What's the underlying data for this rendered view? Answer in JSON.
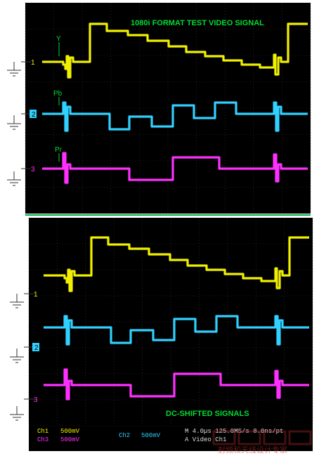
{
  "top_panel": {
    "title": "1080i FORMAT TEST VIDEO SIGNAL",
    "trace_labels": {
      "y": "Y",
      "pb": "Pb",
      "pr": "Pr"
    },
    "channel_markers": [
      "1",
      "2",
      "3"
    ]
  },
  "bottom_panel": {
    "title": "DC-SHIFTED SIGNALS",
    "channel_markers": [
      "1",
      "2",
      "3"
    ]
  },
  "status_bar": {
    "ch1": "Ch1",
    "ch1_scale": "500mV",
    "ch3": "Ch3",
    "ch3_scale": "500mV",
    "ch2": "Ch2",
    "ch2_scale": "500mV",
    "timebase": "M 4.0µs 125.0MS/s  8.0ns/pt",
    "trigger": "A  Video   Ch1"
  },
  "watermark": {
    "text": "射频和天线设计专家"
  },
  "colors": {
    "background": "#000000",
    "grid": "#3a3a3a",
    "y_trace": "#f0f000",
    "pb_trace": "#30d0ff",
    "pr_trace": "#ff30ff",
    "label_green": "#00dd33",
    "status_yellow": "#f0f000",
    "status_magenta": "#ff30ff",
    "status_cyan": "#30d0ff"
  }
}
